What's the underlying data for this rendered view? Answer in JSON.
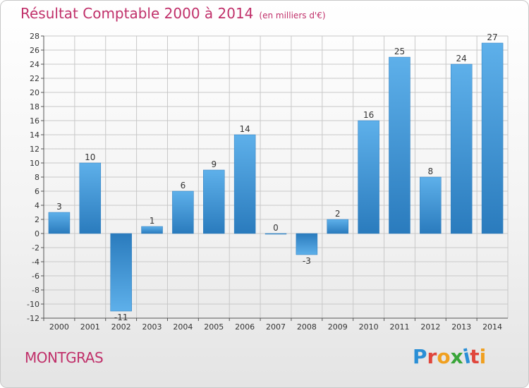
{
  "title": "Résultat Comptable 2000 à 2014",
  "subtitle": "(en milliers d'€)",
  "location": "MONTGRAS",
  "logo": {
    "text": "Proxiti",
    "letter_colors": [
      "#2a8fd6",
      "#e0463c",
      "#f0a020",
      "#3aa63a",
      "#2a8fd6",
      "#e0463c",
      "#f0a020"
    ]
  },
  "colors": {
    "title": "#c0306a",
    "bar_light": "#5eb0ea",
    "bar_dark": "#2a7bbd",
    "grid": "#c8c8c8"
  },
  "chart_data": {
    "type": "bar",
    "title": "Résultat Comptable 2000 à 2014",
    "subtitle": "(en milliers d'€)",
    "categories": [
      "2000",
      "2001",
      "2002",
      "2003",
      "2004",
      "2005",
      "2006",
      "2007",
      "2008",
      "2009",
      "2010",
      "2011",
      "2012",
      "2013",
      "2014"
    ],
    "values": [
      3,
      10,
      -11,
      1,
      6,
      9,
      14,
      0,
      -3,
      2,
      16,
      25,
      8,
      24,
      27
    ],
    "ylim": [
      -12,
      28
    ],
    "yticks": [
      -12,
      -10,
      -8,
      -6,
      -4,
      -2,
      0,
      2,
      4,
      6,
      8,
      10,
      12,
      14,
      16,
      18,
      20,
      22,
      24,
      26,
      28
    ],
    "grid": true,
    "data_labels": true
  }
}
